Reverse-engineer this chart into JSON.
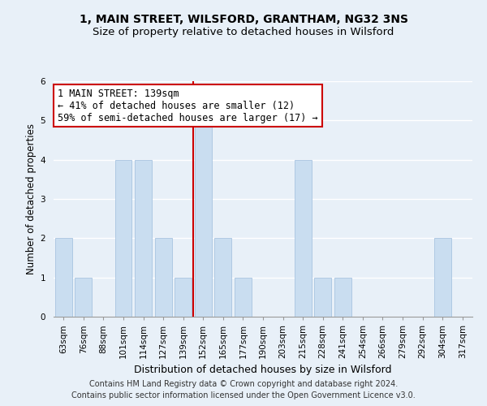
{
  "title": "1, MAIN STREET, WILSFORD, GRANTHAM, NG32 3NS",
  "subtitle": "Size of property relative to detached houses in Wilsford",
  "xlabel": "Distribution of detached houses by size in Wilsford",
  "ylabel": "Number of detached properties",
  "bar_labels": [
    "63sqm",
    "76sqm",
    "88sqm",
    "101sqm",
    "114sqm",
    "127sqm",
    "139sqm",
    "152sqm",
    "165sqm",
    "177sqm",
    "190sqm",
    "203sqm",
    "215sqm",
    "228sqm",
    "241sqm",
    "254sqm",
    "266sqm",
    "279sqm",
    "292sqm",
    "304sqm",
    "317sqm"
  ],
  "bar_values": [
    2,
    1,
    0,
    4,
    4,
    2,
    1,
    5,
    2,
    1,
    0,
    0,
    4,
    1,
    1,
    0,
    0,
    0,
    0,
    2,
    0
  ],
  "bar_color": "#c9ddf0",
  "bar_edge_color": "#a8c4e0",
  "highlight_index": 6,
  "highlight_line_color": "#cc0000",
  "ylim": [
    0,
    6
  ],
  "yticks": [
    0,
    1,
    2,
    3,
    4,
    5,
    6
  ],
  "annotation_title": "1 MAIN STREET: 139sqm",
  "annotation_line1": "← 41% of detached houses are smaller (12)",
  "annotation_line2": "59% of semi-detached houses are larger (17) →",
  "annotation_box_color": "#ffffff",
  "annotation_border_color": "#cc0000",
  "footer_line1": "Contains HM Land Registry data © Crown copyright and database right 2024.",
  "footer_line2": "Contains public sector information licensed under the Open Government Licence v3.0.",
  "title_fontsize": 10,
  "subtitle_fontsize": 9.5,
  "xlabel_fontsize": 9,
  "ylabel_fontsize": 8.5,
  "tick_fontsize": 7.5,
  "annotation_fontsize": 8.5,
  "footer_fontsize": 7,
  "grid_color": "#ffffff",
  "bg_color": "#e8f0f8"
}
